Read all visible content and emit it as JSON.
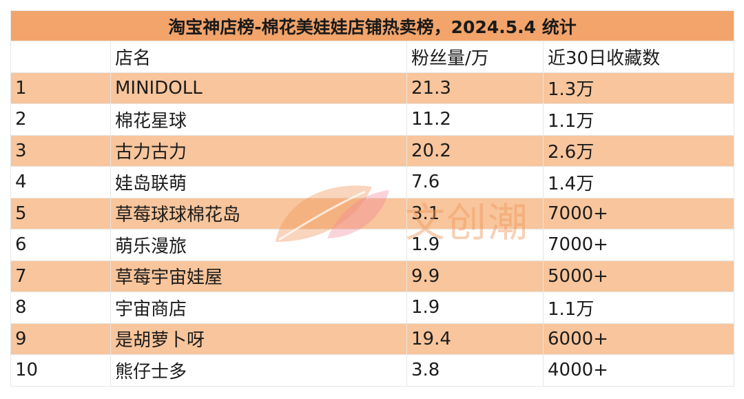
{
  "title": "淘宝神店榜-棉花美娃娃店铺热卖榜，2024.5.4 统计",
  "columns": [
    "",
    "店名",
    "粉丝量/万",
    "近30日收藏数"
  ],
  "rows": [
    [
      "1",
      "MINIDOLL",
      "21.3",
      "1.3万"
    ],
    [
      "2",
      "棉花星球",
      "11.2",
      "1.1万"
    ],
    [
      "3",
      "古力古力",
      "20.2",
      "2.6万"
    ],
    [
      "4",
      "娃岛联萌",
      "7.6",
      "1.4万"
    ],
    [
      "5",
      "草莓球球棉花岛",
      "3.1",
      "7000+"
    ],
    [
      "6",
      "萌乐漫旅",
      "1.9",
      "7000+"
    ],
    [
      "7",
      "草莓宇宙娃屋",
      "9.9",
      "5000+"
    ],
    [
      "8",
      "宇宙商店",
      "1.9",
      "1.1万"
    ],
    [
      "9",
      "是胡萝卜呀",
      "19.4",
      "6000+"
    ],
    [
      "10",
      "熊仔士多",
      "3.8",
      "4000+"
    ]
  ],
  "watermark": "文创潮",
  "colors": {
    "title_bg": "#f2a46a",
    "odd_row_bg": "#f8c59c",
    "grid": "#e6e6e6"
  }
}
